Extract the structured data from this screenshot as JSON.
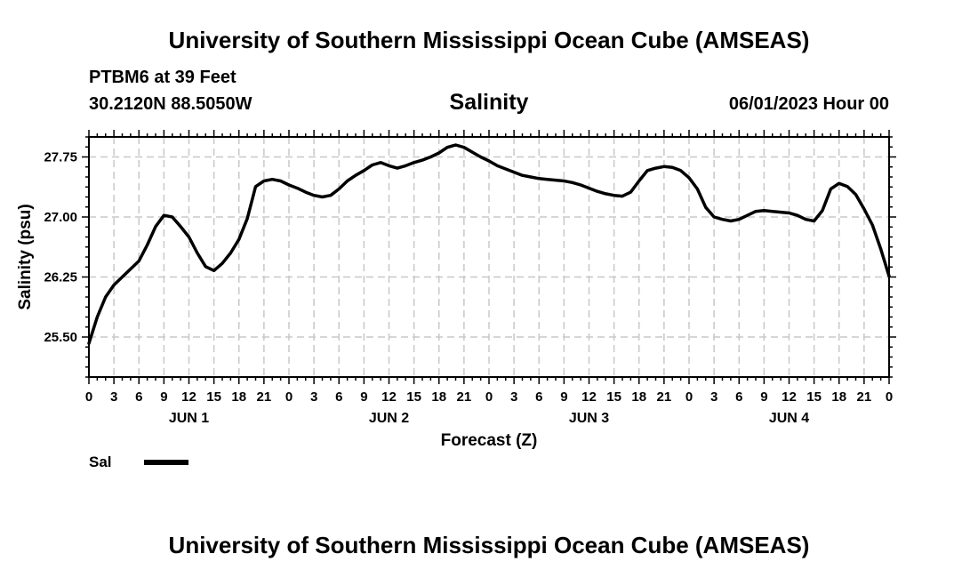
{
  "header": {
    "title": "University of Southern Mississippi Ocean Cube (AMSEAS)",
    "station": "PTBM6 at 39 Feet",
    "coordinates": "30.2120N  88.5050W",
    "datetime": "06/01/2023 Hour 00"
  },
  "footer": {
    "title": "University of Southern Mississippi Ocean Cube (AMSEAS)"
  },
  "chart_data": {
    "type": "line",
    "title": "Salinity",
    "xlabel": "Forecast (Z)",
    "ylabel": "Salinity (psu)",
    "ylim": [
      25.0,
      28.0
    ],
    "yticks": [
      "25.50",
      "26.25",
      "27.00",
      "27.75"
    ],
    "ytick_values": [
      25.5,
      26.25,
      27.0,
      27.75
    ],
    "xlim_hours": [
      0,
      96
    ],
    "xtick_labels": [
      "0",
      "3",
      "6",
      "9",
      "12",
      "15",
      "18",
      "21",
      "0",
      "3",
      "6",
      "9",
      "12",
      "15",
      "18",
      "21",
      "0",
      "3",
      "6",
      "9",
      "12",
      "15",
      "18",
      "21",
      "0",
      "3",
      "6",
      "9",
      "12",
      "15",
      "18",
      "21",
      "0"
    ],
    "day_labels": [
      {
        "label": "JUN 1",
        "hour": 12
      },
      {
        "label": "JUN 2",
        "hour": 36
      },
      {
        "label": "JUN 3",
        "hour": 60
      },
      {
        "label": "JUN 4",
        "hour": 84
      }
    ],
    "grid": true,
    "series": [
      {
        "name": "Sal",
        "color": "#000000",
        "x": [
          0,
          1,
          2,
          3,
          4,
          5,
          6,
          7,
          8,
          9,
          10,
          11,
          12,
          13,
          14,
          15,
          16,
          17,
          18,
          19,
          20,
          21,
          22,
          23,
          24,
          25,
          26,
          27,
          28,
          29,
          30,
          31,
          32,
          33,
          34,
          35,
          36,
          37,
          38,
          39,
          40,
          41,
          42,
          43,
          44,
          45,
          46,
          47,
          48,
          49,
          50,
          51,
          52,
          53,
          54,
          55,
          56,
          57,
          58,
          59,
          60,
          61,
          62,
          63,
          64,
          65,
          66,
          67,
          68,
          69,
          70,
          71,
          72,
          73,
          74,
          75,
          76,
          77,
          78,
          79,
          80,
          81,
          82,
          83,
          84,
          85,
          86,
          87,
          88,
          89,
          90,
          91,
          92,
          93,
          94,
          95,
          96
        ],
        "y": [
          25.42,
          25.75,
          26.0,
          26.15,
          26.25,
          26.35,
          26.45,
          26.65,
          26.88,
          27.02,
          27.0,
          26.88,
          26.75,
          26.55,
          26.38,
          26.33,
          26.42,
          26.55,
          26.72,
          26.98,
          27.38,
          27.45,
          27.47,
          27.45,
          27.4,
          27.36,
          27.31,
          27.27,
          27.25,
          27.27,
          27.35,
          27.45,
          27.52,
          27.58,
          27.65,
          27.68,
          27.64,
          27.61,
          27.64,
          27.68,
          27.71,
          27.75,
          27.8,
          27.87,
          27.9,
          27.87,
          27.81,
          27.75,
          27.7,
          27.64,
          27.6,
          27.56,
          27.52,
          27.5,
          27.48,
          27.47,
          27.46,
          27.45,
          27.43,
          27.4,
          27.36,
          27.32,
          27.29,
          27.27,
          27.26,
          27.31,
          27.45,
          27.58,
          27.61,
          27.63,
          27.62,
          27.58,
          27.49,
          27.35,
          27.12,
          27.0,
          26.97,
          26.95,
          26.97,
          27.02,
          27.07,
          27.08,
          27.07,
          27.06,
          27.05,
          27.02,
          26.97,
          26.95,
          27.08,
          27.35,
          27.42,
          27.38,
          27.28,
          27.1,
          26.9,
          26.6,
          26.26
        ]
      }
    ],
    "legend": {
      "label": "Sal",
      "placement": "bottom-left"
    }
  }
}
